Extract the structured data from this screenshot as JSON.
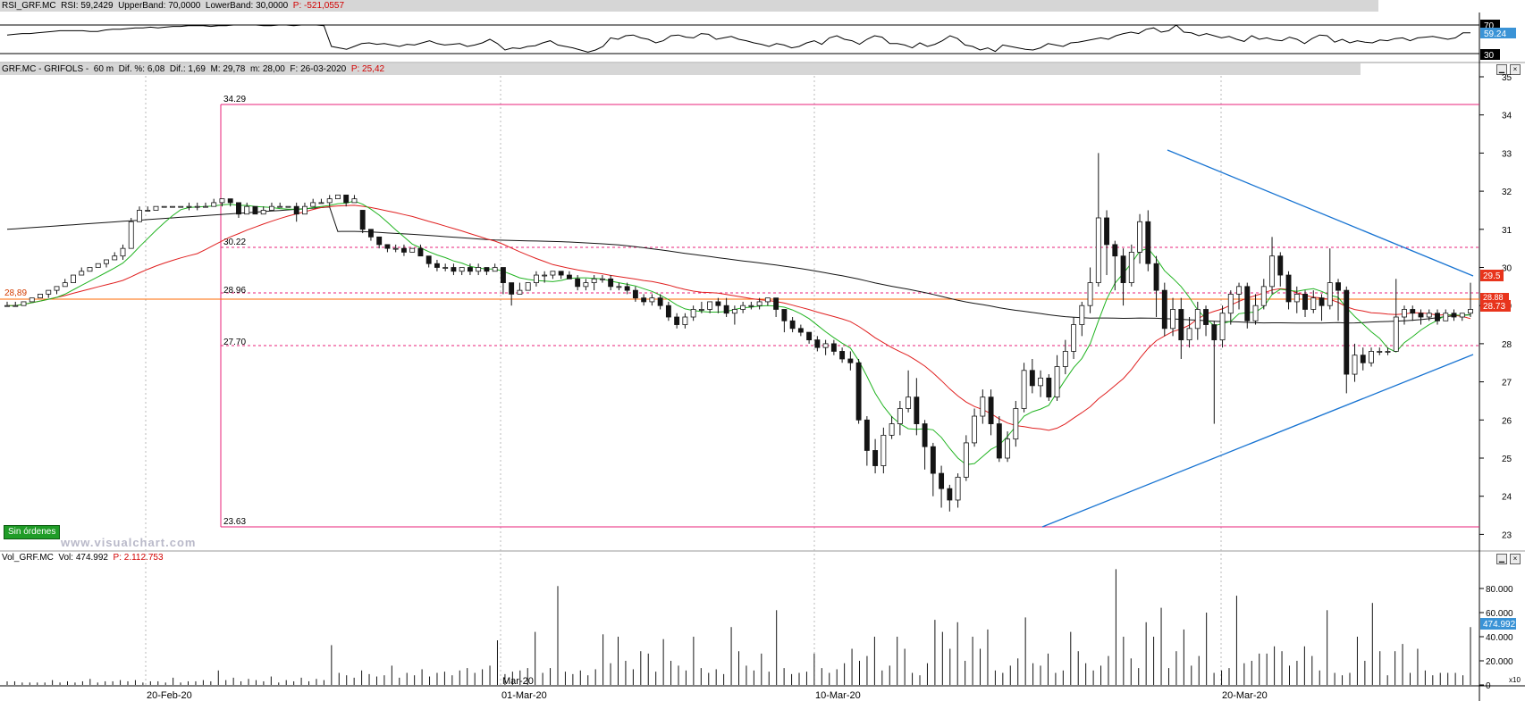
{
  "rsi_panel": {
    "header_name": "RSI_GRF.MC",
    "header_rsi": "RSI: 59,2429",
    "header_upper": "UpperBand: 70,0000",
    "header_lower": "LowerBand: 30,0000",
    "header_p": "P: -521,0557",
    "tick_70": "70",
    "tick_30": "30",
    "value_badge": "59.24",
    "values": [
      56,
      57,
      58,
      58,
      59,
      60,
      61,
      62,
      62,
      62,
      62,
      61,
      61,
      63,
      64,
      64,
      65,
      66,
      66,
      67,
      66,
      67,
      68,
      68,
      69,
      69,
      69,
      68,
      69,
      69,
      70,
      70,
      70,
      70,
      69,
      69,
      70,
      70,
      69,
      70,
      70,
      70,
      69,
      40,
      38,
      36,
      40,
      44,
      45,
      43,
      44,
      42,
      40,
      43,
      42,
      45,
      48,
      44,
      42,
      43,
      44,
      40,
      42,
      45,
      50,
      44,
      35,
      38,
      37,
      40,
      41,
      45,
      48,
      42,
      40,
      38,
      35,
      32,
      35,
      40,
      52,
      50,
      55,
      56,
      52,
      50,
      45,
      48,
      55,
      56,
      53,
      52,
      58,
      57,
      50,
      52,
      54,
      50,
      48,
      45,
      43,
      40,
      44,
      42,
      38,
      40,
      45,
      48,
      43,
      52,
      55,
      50,
      48,
      43,
      50,
      55,
      53,
      44,
      44,
      42,
      38,
      45,
      40,
      43,
      48,
      55,
      51,
      42,
      40,
      35,
      38,
      33,
      42,
      40,
      38,
      36,
      35,
      38,
      44,
      42,
      40,
      45,
      46,
      48,
      50,
      52,
      50,
      55,
      58,
      60,
      58,
      64,
      66,
      60,
      62,
      70,
      60,
      59,
      55,
      58,
      55,
      52,
      54,
      50,
      47,
      55,
      50,
      52,
      49,
      48,
      53,
      50,
      44,
      51,
      56,
      55,
      46,
      50,
      45,
      48,
      46,
      45,
      49,
      48,
      51,
      52,
      48,
      52,
      53,
      54,
      52,
      50,
      52,
      59,
      59
    ]
  },
  "price_panel": {
    "header_name": "GRF.MC - GRIFOLS -",
    "header_tf": "60 m",
    "header_dif_pct": "Dif. %: 6,08",
    "header_dif": "Dif.: 1,69",
    "header_max": "M: 29,78",
    "header_min": "m: 28,00",
    "header_f": "F: 26-03-2020",
    "header_p": "P: 25,42",
    "level_labels": [
      "34.29",
      "30.22",
      "28.96",
      "27.70",
      "23.63"
    ],
    "left_price_label": "28,89",
    "badge_29_5": "29.5",
    "badge_last": "28.73",
    "badge_hidden": "28.88",
    "sin_ordenes": "Sin órdenes",
    "watermark": "www.visualchart.com",
    "y_ticks": [
      "35",
      "34",
      "33",
      "32",
      "31",
      "30",
      "29",
      "28",
      "27",
      "26",
      "25",
      "24",
      "23"
    ]
  },
  "volume_panel": {
    "header_name": "Vol_GRF.MC",
    "header_vol": "Vol: 474.992",
    "header_p": "P: 2.112.753",
    "y_ticks": [
      "80.000",
      "60.000",
      "40.000",
      "20.000",
      "0"
    ],
    "value_badge": "474.992",
    "corner": "x10"
  },
  "x_axis": {
    "labels": [
      "20-Feb-20",
      "01-Mar-20",
      "10-Mar-20",
      "20-Mar-20"
    ],
    "month_marker": "Mar-20"
  },
  "colors": {
    "ma_short": "#22b422",
    "ma_mid": "#e02020",
    "ma_long": "#141414",
    "level_line": "#e8207a",
    "trendline": "#1874d2",
    "price_line": "#ff6a00",
    "rsi_badge": "#3a93d6",
    "up_candle": "#ffffff",
    "down_candle": "#141414"
  },
  "chart_data": {
    "type": "candlestick",
    "symbol": "GRF.MC",
    "y_range": [
      23,
      35
    ],
    "levels": [
      34.29,
      30.22,
      28.96,
      27.7,
      23.63
    ],
    "last_price": 28.89,
    "candles": [
      [
        29,
        29,
        29.1,
        29
      ],
      [
        29,
        29,
        29.1,
        29
      ],
      [
        29,
        29.1,
        29.1,
        29
      ],
      [
        29.1,
        29.2,
        29.2,
        29.1
      ],
      [
        29.2,
        29.3,
        29.3,
        29.2
      ],
      [
        29.3,
        29.4,
        29.4,
        29.2
      ],
      [
        29.4,
        29.5,
        29.5,
        29.3
      ],
      [
        29.5,
        29.6,
        29.7,
        29.5
      ],
      [
        29.6,
        29.8,
        29.8,
        29.6
      ],
      [
        29.8,
        29.9,
        30,
        29.8
      ],
      [
        29.9,
        30,
        30,
        29.9
      ],
      [
        30,
        30.1,
        30.1,
        30
      ],
      [
        30.1,
        30.2,
        30.2,
        30
      ],
      [
        30.2,
        30.3,
        30.4,
        30.2
      ],
      [
        30.3,
        30.5,
        30.6,
        30.2
      ],
      [
        30.5,
        31.2,
        31.3,
        30.5
      ],
      [
        31.2,
        31.5,
        31.6,
        31.2
      ],
      [
        31.5,
        31.5,
        31.6,
        31.5
      ],
      [
        31.5,
        31.6,
        31.6,
        31.5
      ],
      [
        31.6,
        31.6,
        31.6,
        31.6
      ],
      [
        31.6,
        31.6,
        31.6,
        31.6
      ],
      [
        31.6,
        31.6,
        31.6,
        31.6
      ],
      [
        31.6,
        31.6,
        31.7,
        31.5
      ],
      [
        31.6,
        31.6,
        31.7,
        31.5
      ],
      [
        31.6,
        31.6,
        31.7,
        31.6
      ],
      [
        31.6,
        31.7,
        31.8,
        31.6
      ],
      [
        31.7,
        31.8,
        31.8,
        31.6
      ],
      [
        31.8,
        31.7,
        31.8,
        31.6
      ],
      [
        31.7,
        31.4,
        31.7,
        31.3
      ],
      [
        31.4,
        31.6,
        31.7,
        31.4
      ],
      [
        31.6,
        31.4,
        31.6,
        31.4
      ],
      [
        31.4,
        31.5,
        31.6,
        31.5
      ],
      [
        31.5,
        31.6,
        31.7,
        31.5
      ],
      [
        31.6,
        31.6,
        31.7,
        31.6
      ],
      [
        31.6,
        31.6,
        31.6,
        31.6
      ],
      [
        31.6,
        31.4,
        31.7,
        31.2
      ],
      [
        31.4,
        31.6,
        31.7,
        31.4
      ],
      [
        31.6,
        31.7,
        31.8,
        31.6
      ],
      [
        31.7,
        31.7,
        31.8,
        31.7
      ],
      [
        31.7,
        31.8,
        31.9,
        31.6
      ],
      [
        31.8,
        31.9,
        31.9,
        31.8
      ],
      [
        31.9,
        31.7,
        31.9,
        31.6
      ],
      [
        31.7,
        31.8,
        31.9,
        31.7
      ],
      [
        31.5,
        31,
        31.5,
        30.9
      ],
      [
        31,
        30.8,
        31,
        30.7
      ],
      [
        30.8,
        30.6,
        30.8,
        30.5
      ],
      [
        30.6,
        30.5,
        30.6,
        30.4
      ],
      [
        30.5,
        30.5,
        30.6,
        30.4
      ],
      [
        30.5,
        30.4,
        30.6,
        30.3
      ],
      [
        30.4,
        30.5,
        30.5,
        30.4
      ],
      [
        30.5,
        30.3,
        30.6,
        30.3
      ],
      [
        30.3,
        30.1,
        30.3,
        30
      ],
      [
        30.1,
        30,
        30.2,
        29.9
      ],
      [
        30,
        30,
        30.1,
        29.9
      ],
      [
        30,
        29.9,
        30.1,
        29.8
      ],
      [
        29.9,
        30,
        30,
        29.8
      ],
      [
        30,
        29.9,
        30.1,
        29.8
      ],
      [
        29.9,
        30,
        30.1,
        29.8
      ],
      [
        30,
        29.9,
        30,
        29.8
      ],
      [
        29.9,
        30,
        30.1,
        29.9
      ],
      [
        30,
        29.6,
        30,
        29.3
      ],
      [
        29.6,
        29.3,
        29.6,
        29.0
      ],
      [
        29.3,
        29.4,
        29.6,
        29.3
      ],
      [
        29.4,
        29.6,
        29.6,
        29.4
      ],
      [
        29.6,
        29.8,
        29.9,
        29.5
      ],
      [
        29.8,
        29.8,
        29.9,
        29.6
      ],
      [
        29.8,
        29.9,
        29.9,
        29.7
      ],
      [
        29.9,
        29.8,
        29.9,
        29.7
      ],
      [
        29.8,
        29.7,
        29.9,
        29.7
      ],
      [
        29.7,
        29.5,
        29.8,
        29.4
      ],
      [
        29.5,
        29.6,
        29.7,
        29.4
      ],
      [
        29.6,
        29.7,
        29.8,
        29.4
      ],
      [
        29.7,
        29.7,
        29.8,
        29.6
      ],
      [
        29.7,
        29.5,
        29.8,
        29.4
      ],
      [
        29.5,
        29.5,
        29.6,
        29.4
      ],
      [
        29.5,
        29.4,
        29.6,
        29.3
      ],
      [
        29.4,
        29.2,
        29.5,
        29.1
      ],
      [
        29.2,
        29.1,
        29.3,
        29
      ],
      [
        29.1,
        29.2,
        29.3,
        29
      ],
      [
        29.2,
        29.0,
        29.3,
        28.9
      ],
      [
        29.0,
        28.7,
        29.1,
        28.6
      ],
      [
        28.7,
        28.5,
        28.8,
        28.4
      ],
      [
        28.5,
        28.7,
        28.8,
        28.4
      ],
      [
        28.7,
        28.9,
        29,
        28.6
      ],
      [
        28.9,
        28.9,
        29.1,
        28.8
      ],
      [
        28.9,
        29.1,
        29.1,
        28.8
      ],
      [
        29.1,
        29.0,
        29.2,
        28.8
      ],
      [
        29.0,
        28.8,
        29.2,
        28.7
      ],
      [
        28.8,
        28.9,
        29,
        28.5
      ],
      [
        28.9,
        29.0,
        29.1,
        28.8
      ],
      [
        29.0,
        29.0,
        29.1,
        28.9
      ],
      [
        29.0,
        29.1,
        29.2,
        28.9
      ],
      [
        29.1,
        29.2,
        29.2,
        29.0
      ],
      [
        29.2,
        28.9,
        29.2,
        28.7
      ],
      [
        28.9,
        28.6,
        28.9,
        28.3
      ],
      [
        28.6,
        28.4,
        28.7,
        28.3
      ],
      [
        28.4,
        28.3,
        28.5,
        28.2
      ],
      [
        28.3,
        28.1,
        28.3,
        28.0
      ],
      [
        28.1,
        27.9,
        28.2,
        27.8
      ],
      [
        27.9,
        28.0,
        28.1,
        27.7
      ],
      [
        28.0,
        27.8,
        28.1,
        27.7
      ],
      [
        27.8,
        27.6,
        27.9,
        27.5
      ],
      [
        27.6,
        27.5,
        27.8,
        27.3
      ],
      [
        27.5,
        26.0,
        27.6,
        25.9
      ],
      [
        26.0,
        25.2,
        26.1,
        24.8
      ],
      [
        25.2,
        24.8,
        25.5,
        24.6
      ],
      [
        24.8,
        25.6,
        25.8,
        24.6
      ],
      [
        25.6,
        25.9,
        26.1,
        25.5
      ],
      [
        25.9,
        26.3,
        26.5,
        25.6
      ],
      [
        26.3,
        26.6,
        27.3,
        26.2
      ],
      [
        26.6,
        25.9,
        27.1,
        25.6
      ],
      [
        25.9,
        25.3,
        26,
        24.7
      ],
      [
        25.3,
        24.6,
        25.4,
        24.0
      ],
      [
        24.6,
        24.2,
        24.8,
        23.7
      ],
      [
        24.2,
        23.9,
        24.3,
        23.6
      ],
      [
        23.9,
        24.5,
        24.6,
        23.7
      ],
      [
        24.5,
        25.4,
        25.6,
        24.4
      ],
      [
        25.4,
        26.1,
        26.3,
        25.3
      ],
      [
        26.1,
        26.6,
        26.8,
        25.9
      ],
      [
        26.6,
        25.9,
        26.8,
        25.6
      ],
      [
        25.9,
        25.0,
        26.1,
        24.9
      ],
      [
        25.0,
        25.5,
        25.7,
        24.9
      ],
      [
        25.5,
        26.3,
        26.5,
        25.3
      ],
      [
        26.3,
        27.3,
        27.5,
        26.2
      ],
      [
        27.3,
        26.9,
        27.6,
        26.7
      ],
      [
        26.9,
        27.1,
        27.3,
        26.6
      ],
      [
        27.1,
        26.6,
        27.2,
        26.5
      ],
      [
        26.6,
        27.4,
        27.7,
        26.5
      ],
      [
        27.4,
        27.8,
        28.1,
        27.2
      ],
      [
        27.8,
        28.5,
        28.7,
        27.6
      ],
      [
        28.5,
        29.0,
        29.1,
        28.2
      ],
      [
        29.0,
        29.6,
        30.0,
        28.8
      ],
      [
        29.6,
        31.3,
        33.0,
        29.5
      ],
      [
        31.3,
        30.6,
        31.5,
        29.8
      ],
      [
        30.6,
        30.3,
        30.7,
        29.4
      ],
      [
        30.3,
        29.6,
        30.5,
        29.0
      ],
      [
        29.6,
        30.4,
        30.6,
        29.5
      ],
      [
        30.4,
        31.2,
        31.4,
        30.1
      ],
      [
        31.2,
        30.1,
        31.5,
        29.9
      ],
      [
        30.1,
        29.4,
        30.3,
        28.7
      ],
      [
        29.4,
        28.4,
        29.6,
        28.2
      ],
      [
        28.4,
        28.9,
        29.2,
        28.2
      ],
      [
        28.9,
        28.1,
        29.2,
        27.6
      ],
      [
        28.1,
        28.4,
        28.7,
        27.9
      ],
      [
        28.4,
        28.9,
        29.1,
        28.1
      ],
      [
        28.9,
        28.5,
        29.0,
        28.2
      ],
      [
        28.5,
        28.1,
        28.6,
        25.9
      ],
      [
        28.1,
        28.8,
        29.0,
        27.9
      ],
      [
        28.8,
        29.3,
        29.4,
        28.5
      ],
      [
        29.3,
        29.5,
        29.6,
        28.9
      ],
      [
        29.5,
        28.6,
        29.6,
        28.4
      ],
      [
        28.6,
        29.0,
        29.3,
        28.5
      ],
      [
        29.0,
        29.5,
        29.7,
        28.9
      ],
      [
        29.5,
        30.3,
        30.8,
        29.3
      ],
      [
        30.3,
        29.8,
        30.4,
        29.5
      ],
      [
        29.8,
        29.1,
        29.9,
        28.9
      ],
      [
        29.1,
        29.3,
        29.5,
        28.8
      ],
      [
        29.3,
        28.9,
        29.4,
        28.7
      ],
      [
        28.9,
        29.2,
        29.4,
        28.8
      ],
      [
        29.2,
        29.0,
        29.3,
        28.6
      ],
      [
        29.0,
        29.6,
        30.5,
        28.9
      ],
      [
        29.6,
        29.4,
        29.7,
        28.6
      ],
      [
        29.4,
        27.2,
        29.5,
        26.7
      ],
      [
        27.2,
        27.7,
        28.0,
        27.0
      ],
      [
        27.7,
        27.5,
        27.9,
        27.3
      ],
      [
        27.5,
        27.8,
        27.9,
        27.4
      ],
      [
        27.8,
        27.8,
        27.9,
        27.7
      ],
      [
        27.8,
        27.8,
        27.9,
        27.7
      ],
      [
        27.8,
        28.7,
        29.7,
        27.8
      ],
      [
        28.7,
        28.9,
        29.0,
        28.5
      ],
      [
        28.9,
        28.8,
        29.0,
        28.6
      ],
      [
        28.8,
        28.7,
        28.9,
        28.5
      ],
      [
        28.7,
        28.8,
        28.9,
        28.6
      ],
      [
        28.8,
        28.6,
        28.9,
        28.5
      ],
      [
        28.6,
        28.8,
        28.9,
        28.6
      ],
      [
        28.8,
        28.7,
        28.9,
        28.6
      ],
      [
        28.7,
        28.8,
        28.8,
        28.6
      ],
      [
        28.8,
        28.9,
        29.6,
        28.7
      ]
    ],
    "volume": [
      3,
      3,
      2,
      2,
      2,
      2,
      4,
      2,
      3,
      2,
      3,
      5,
      2,
      3,
      3,
      4,
      3,
      4,
      2,
      3,
      3,
      2,
      6,
      2,
      3,
      3,
      4,
      3,
      12,
      4,
      6,
      3,
      5,
      4,
      3,
      7,
      2,
      4,
      3,
      6,
      3,
      5,
      4,
      33,
      10,
      8,
      6,
      12,
      9,
      7,
      8,
      16,
      6,
      10,
      8,
      13,
      7,
      10,
      11,
      8,
      12,
      14,
      10,
      13,
      16,
      37,
      9,
      11,
      12,
      14,
      44,
      10,
      14,
      82,
      11,
      9,
      12,
      8,
      13,
      42,
      18,
      40,
      20,
      13,
      28,
      26,
      11,
      38,
      20,
      16,
      12,
      40,
      14,
      10,
      13,
      9,
      48,
      28,
      16,
      12,
      26,
      11,
      62,
      14,
      9,
      10,
      11,
      26,
      14,
      10,
      13,
      18,
      30,
      20,
      24,
      40,
      12,
      16,
      40,
      30,
      10,
      8,
      18,
      54,
      44,
      30,
      52,
      20,
      40,
      30,
      46,
      12,
      10,
      16,
      22,
      56,
      18,
      16,
      26,
      10,
      12,
      44,
      28,
      18,
      12,
      16,
      24,
      96,
      40,
      22,
      14,
      52,
      40,
      64,
      14,
      28,
      46,
      16,
      24,
      60,
      10,
      12,
      14,
      74,
      18,
      20,
      26,
      26,
      32,
      28,
      16,
      20,
      32,
      24,
      12,
      62,
      10,
      8,
      10,
      40,
      20,
      68,
      28,
      8,
      28,
      34,
      10,
      30,
      12,
      8,
      10,
      10,
      10,
      8,
      48
    ]
  }
}
